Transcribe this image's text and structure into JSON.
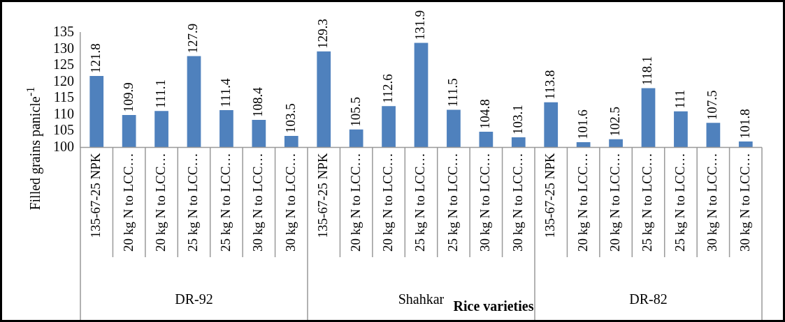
{
  "chart_data": {
    "type": "bar",
    "ylabel": "Filled grains panicle$^{-1}$",
    "xlabel": "Rice varieties",
    "categories": [
      "135-67-25 NPK",
      "20 kg N to LCC…",
      "20 kg N to LCC…",
      "25 kg N to LCC…",
      "25 kg N to LCC…",
      "30 kg N to LCC…",
      "30 kg N to LCC…",
      "135-67-25 NPK",
      "20 kg N to LCC…",
      "20 kg N to LCC…",
      "25 kg N to LCC…",
      "25 kg N to LCC…",
      "30 kg N to LCC…",
      "30 kg N to LCC…",
      "135-67-25 NPK",
      "20 kg N to LCC…",
      "20 kg N to LCC…",
      "25 kg N to LCC…",
      "25 kg N to LCC…",
      "30 kg N to LCC…",
      "30 kg N to LCC…"
    ],
    "values": [
      121.8,
      109.9,
      111.1,
      127.9,
      111.4,
      108.4,
      103.5,
      129.3,
      105.5,
      112.6,
      131.9,
      111.5,
      104.8,
      103.1,
      113.8,
      101.6,
      102.5,
      118.1,
      111,
      107.5,
      101.8
    ],
    "color": "#4f81bd",
    "data_labels": true,
    "annotations": [
      "DR-92",
      "Shahkar",
      "DR-82"
    ],
    "ylim": [
      100,
      135
    ],
    "yticks": [
      100,
      105,
      110,
      115,
      120,
      125,
      130,
      135
    ],
    "grid": false,
    "legend": false
  }
}
